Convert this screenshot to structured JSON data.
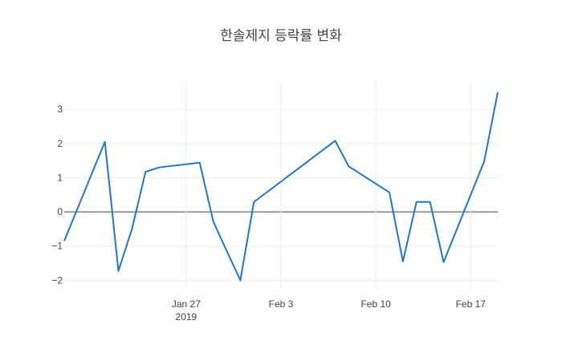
{
  "chart_data": {
    "type": "line",
    "title": "한솔제지 등락률 변화",
    "xlabel": "",
    "ylabel": "",
    "grid": true,
    "x": [
      "2019-01-18",
      "2019-01-21",
      "2019-01-22",
      "2019-01-23",
      "2019-01-24",
      "2019-01-25",
      "2019-01-28",
      "2019-01-29",
      "2019-01-30",
      "2019-01-31",
      "2019-02-01",
      "2019-02-07",
      "2019-02-08",
      "2019-02-11",
      "2019-02-12",
      "2019-02-13",
      "2019-02-14",
      "2019-02-15",
      "2019-02-18",
      "2019-02-19"
    ],
    "series": [
      {
        "color": "#1f77d4",
        "values": [
          -0.85,
          2.05,
          -1.73,
          -0.5,
          1.17,
          1.3,
          1.44,
          -0.28,
          -1.15,
          -2.0,
          0.29,
          2.08,
          1.33,
          0.57,
          -1.45,
          0.29,
          0.29,
          -1.47,
          1.48,
          3.5
        ]
      }
    ],
    "xlim": [
      "2019-01-18",
      "2019-02-19"
    ],
    "ylim": [
      -2.25,
      3.85
    ],
    "x_ticks": [
      {
        "date": "2019-01-27",
        "label": "Jan 27",
        "sublabel": "2019"
      },
      {
        "date": "2019-02-03",
        "label": "Feb 3",
        "sublabel": ""
      },
      {
        "date": "2019-02-10",
        "label": "Feb 10",
        "sublabel": ""
      },
      {
        "date": "2019-02-17",
        "label": "Feb 17",
        "sublabel": ""
      }
    ],
    "y_ticks": [
      {
        "value": -2,
        "label": "−2"
      },
      {
        "value": -1,
        "label": "−1"
      },
      {
        "value": 0,
        "label": "0"
      },
      {
        "value": 1,
        "label": "1"
      },
      {
        "value": 2,
        "label": "2"
      },
      {
        "value": 3,
        "label": "3"
      }
    ]
  }
}
